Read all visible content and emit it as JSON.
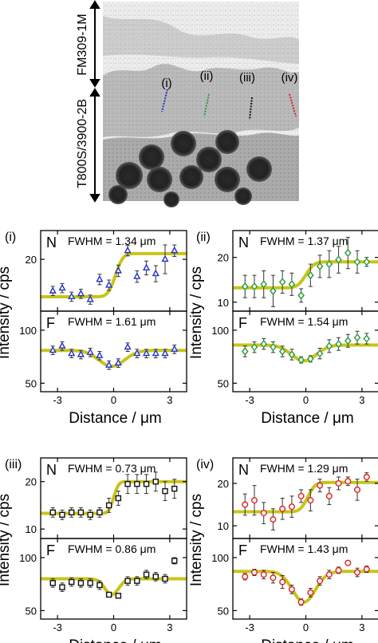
{
  "figure": {
    "image_labels": {
      "top_region": "FM309-1M",
      "bottom_region": "T800S/3900-2B",
      "lines": [
        "(i)",
        "(ii)",
        "(iii)",
        "(iv)"
      ]
    },
    "colors": {
      "line_i": "#2233cc",
      "line_ii": "#2a9a3a",
      "line_iii": "#111111",
      "line_iv": "#dd2222",
      "fit": "#c8c41a"
    },
    "xlabel": "Distance / μm",
    "ylabel": "Intensity / cps"
  },
  "chart_data": [
    {
      "id": "i",
      "type": "scatter",
      "label": "(i)",
      "marker": "triangle",
      "color": "#2233cc",
      "x": [
        -3.25,
        -2.75,
        -2.25,
        -1.75,
        -1.25,
        -0.75,
        -0.25,
        0.25,
        0.75,
        1.25,
        1.75,
        2.25,
        2.75,
        3.25
      ],
      "panels": [
        {
          "tag": "N",
          "fwhm": "FWHM = 1.34 μm",
          "ylim": [
            11,
            25
          ],
          "yticks": [
            20
          ],
          "y": [
            14.5,
            15.0,
            13.5,
            14.0,
            13.0,
            16.5,
            15.5,
            18.0,
            21.5,
            17.0,
            18.5,
            17.5,
            20.0,
            21.5
          ],
          "err": [
            0.8,
            0.8,
            0.8,
            0.8,
            0.8,
            0.9,
            0.9,
            1.0,
            0.9,
            1.0,
            1.2,
            1.4,
            2.5,
            1.0
          ],
          "fit": {
            "kind": "step",
            "low": 13.5,
            "high": 21.0,
            "center": 0.1,
            "width": 0.45
          }
        },
        {
          "tag": "F",
          "fwhm": "FWHM = 1.61 μm",
          "ylim": [
            42,
            118
          ],
          "yticks": [
            50,
            100
          ],
          "y": [
            81,
            85,
            78,
            77,
            79,
            76,
            67,
            69,
            84,
            78,
            78,
            78,
            78,
            82
          ],
          "err": [
            4,
            4,
            4,
            4,
            4,
            4,
            4,
            4,
            4,
            4,
            4,
            4,
            4,
            4
          ],
          "fit": {
            "kind": "dip",
            "base": 81,
            "depth": 15,
            "center": -0.1,
            "fwhm": 1.61
          }
        }
      ]
    },
    {
      "id": "ii",
      "type": "scatter",
      "label": "(ii)",
      "marker": "diamond",
      "color": "#2a9a3a",
      "x": [
        -3.25,
        -2.75,
        -2.25,
        -1.75,
        -1.25,
        -0.75,
        -0.25,
        0.25,
        0.75,
        1.25,
        1.75,
        2.25,
        2.75,
        3.25
      ],
      "panels": [
        {
          "tag": "N",
          "fwhm": "FWHM = 1.37 μm",
          "ylim": [
            8,
            26
          ],
          "yticks": [
            10,
            20
          ],
          "y": [
            13.5,
            13.5,
            14.0,
            12.5,
            14.5,
            14.0,
            11.5,
            16.0,
            18.0,
            18.5,
            19.5,
            21.0,
            19.0,
            19.0
          ],
          "err": [
            2.5,
            2.5,
            3.0,
            3.5,
            2.5,
            2.5,
            1.5,
            2.5,
            2.5,
            3.0,
            3.0,
            3.5,
            2.5,
            1.0
          ],
          "fit": {
            "kind": "step",
            "low": 13.2,
            "high": 19.0,
            "center": 0.0,
            "width": 0.5
          }
        },
        {
          "tag": "F",
          "fwhm": "FWHM = 1.54 μm",
          "ylim": [
            42,
            118
          ],
          "yticks": [
            50,
            100
          ],
          "y": [
            80,
            84,
            87,
            84,
            80,
            77,
            72,
            73,
            78,
            85,
            87,
            90,
            93,
            92
          ],
          "err": [
            5,
            5,
            5,
            5,
            5,
            5,
            3,
            3,
            5,
            6,
            6,
            6,
            6,
            5
          ],
          "fit": {
            "kind": "dip",
            "base": 86,
            "depth": 15,
            "center": -0.1,
            "fwhm": 1.54
          }
        }
      ]
    },
    {
      "id": "iii",
      "type": "scatter",
      "label": "(iii)",
      "marker": "square",
      "color": "#111111",
      "x": [
        -3.25,
        -2.75,
        -2.25,
        -1.75,
        -1.25,
        -0.75,
        -0.25,
        0.25,
        0.75,
        1.25,
        1.75,
        2.25,
        2.75,
        3.25
      ],
      "panels": [
        {
          "tag": "N",
          "fwhm": "FWHM = 0.73 μm",
          "ylim": [
            8,
            25
          ],
          "yticks": [
            10,
            20
          ],
          "y": [
            13.5,
            13.0,
            13.5,
            13.5,
            13.0,
            13.5,
            15.0,
            16.5,
            19.5,
            19.5,
            19.5,
            20.0,
            18.0,
            18.5
          ],
          "err": [
            1.0,
            1.0,
            1.0,
            1.0,
            1.0,
            1.0,
            1.5,
            1.5,
            2.0,
            2.0,
            2.0,
            2.0,
            2.0,
            2.0
          ],
          "fit": {
            "kind": "step",
            "low": 13.3,
            "high": 20.0,
            "center": 0.0,
            "width": 0.3
          }
        },
        {
          "tag": "F",
          "fwhm": "FWHM = 0.86 μm",
          "ylim": [
            42,
            118
          ],
          "yticks": [
            50,
            100
          ],
          "y": [
            76,
            72,
            77,
            76,
            76,
            74,
            65,
            64,
            78,
            78,
            84,
            82,
            80,
            97
          ],
          "err": [
            4,
            4,
            4,
            4,
            4,
            4,
            2,
            2,
            4,
            4,
            4,
            4,
            4,
            3
          ],
          "fit": {
            "kind": "dip",
            "base": 80,
            "depth": 15,
            "center": -0.1,
            "fwhm": 0.86
          }
        }
      ]
    },
    {
      "id": "iv",
      "type": "scatter",
      "label": "(iv)",
      "marker": "circle",
      "color": "#dd2222",
      "x": [
        -3.25,
        -2.75,
        -2.25,
        -1.75,
        -1.25,
        -0.75,
        -0.25,
        0.25,
        0.75,
        1.25,
        1.75,
        2.25,
        2.75,
        3.25
      ],
      "panels": [
        {
          "tag": "N",
          "fwhm": "FWHM = 1.29 μm",
          "ylim": [
            7,
            26
          ],
          "yticks": [
            10,
            20
          ],
          "y": [
            15.0,
            16.0,
            13.0,
            11.5,
            14.0,
            14.5,
            17.0,
            16.0,
            19.5,
            17.0,
            20.0,
            20.5,
            18.5,
            21.5
          ],
          "err": [
            2.5,
            3.5,
            2.5,
            2.5,
            2.5,
            2.5,
            1.5,
            2.5,
            1.5,
            2.0,
            1.5,
            1.0,
            2.5,
            1.0
          ],
          "fit": {
            "kind": "step",
            "low": 13.3,
            "high": 20.2,
            "center": 0.1,
            "width": 0.45
          }
        },
        {
          "tag": "F",
          "fwhm": "FWHM = 1.43 μm",
          "ylim": [
            42,
            118
          ],
          "yticks": [
            50,
            100
          ],
          "y": [
            82,
            86,
            84,
            81,
            77,
            70,
            58,
            67,
            78,
            84,
            88,
            95,
            86,
            89
          ],
          "err": [
            3,
            3,
            4,
            5,
            6,
            4,
            3,
            4,
            4,
            4,
            3,
            2,
            4,
            3
          ],
          "fit": {
            "kind": "dip",
            "base": 87,
            "depth": 29,
            "center": -0.1,
            "fwhm": 1.43
          }
        }
      ]
    }
  ]
}
